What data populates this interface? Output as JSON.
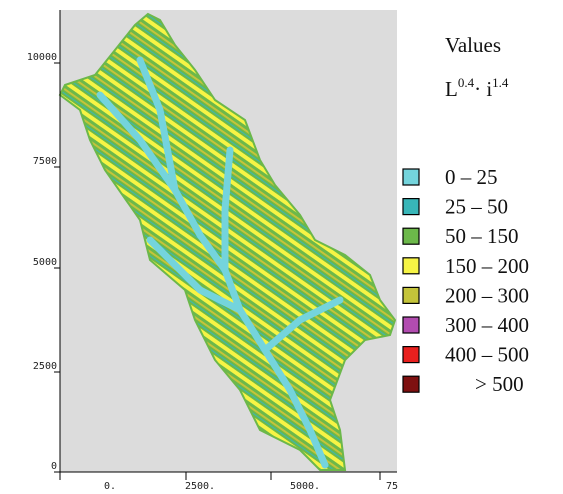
{
  "legend": {
    "title": "Values",
    "formula": {
      "base1": "L",
      "exp1": "0.4",
      "base2": "· i",
      "exp2": "1.4"
    },
    "items": [
      {
        "label": "0 – 25",
        "color": "#74d4dc"
      },
      {
        "label": "25 – 50",
        "color": "#38b6b8"
      },
      {
        "label": "50 – 150",
        "color": "#6cb84a"
      },
      {
        "label": "150 – 200",
        "color": "#f6f445"
      },
      {
        "label": "200 – 300",
        "color": "#c4c43a"
      },
      {
        "label": "300 – 400",
        "color": "#b24cb0"
      },
      {
        "label": "400 – 500",
        "color": "#e8201e"
      },
      {
        "label": "> 500",
        "color": "#7e1010"
      }
    ]
  },
  "y_axis": {
    "ticks": [
      "10000",
      "7500",
      "5000",
      "2500",
      "0"
    ]
  },
  "x_axis": {
    "ticks": [
      "0.",
      "2500.",
      "5000.",
      "75"
    ]
  }
}
